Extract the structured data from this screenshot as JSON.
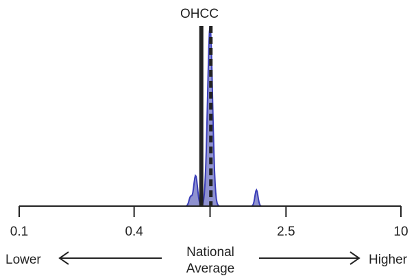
{
  "chart_data": {
    "type": "area",
    "title": "OHCC",
    "x_scale": "log",
    "xlim": [
      0.1,
      10
    ],
    "ticks": [
      {
        "value": 0.1,
        "label": "0.1"
      },
      {
        "value": 0.4,
        "label": "0.4"
      },
      {
        "value": 1,
        "label": ""
      },
      {
        "value": 2.5,
        "label": "2.5"
      },
      {
        "value": 10,
        "label": "10"
      }
    ],
    "reference_value": 1,
    "solid_line_value": 0.9,
    "dashed_line_value": 1.01,
    "density_peaks": [
      {
        "x": 0.84,
        "height": 0.17
      },
      {
        "x": 0.79,
        "height": 0.05
      },
      {
        "x": 1.0,
        "height": 1.0
      },
      {
        "x": 1.75,
        "height": 0.09
      }
    ],
    "fill_color": "#7b7fc8",
    "stroke_color": "#3a3db8",
    "line_color": "#222222",
    "annotations": {
      "lower": "Lower",
      "higher": "Higher",
      "center_line1": "National",
      "center_line2": "Average"
    }
  }
}
